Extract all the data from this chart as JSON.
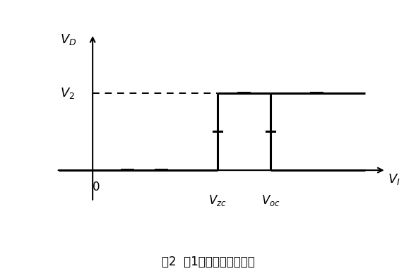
{
  "title": "图2  图1电路回差特性曲线",
  "background_color": "#ffffff",
  "line_color": "#000000",
  "dashed_color": "#000000",
  "vzc": 3.5,
  "voc": 5.0,
  "v2": 0.6,
  "xlim": [
    -1.2,
    8.5
  ],
  "ylim": [
    -0.35,
    1.15
  ],
  "figsize": [
    5.89,
    3.91
  ],
  "dpi": 100,
  "lw": 2.2
}
